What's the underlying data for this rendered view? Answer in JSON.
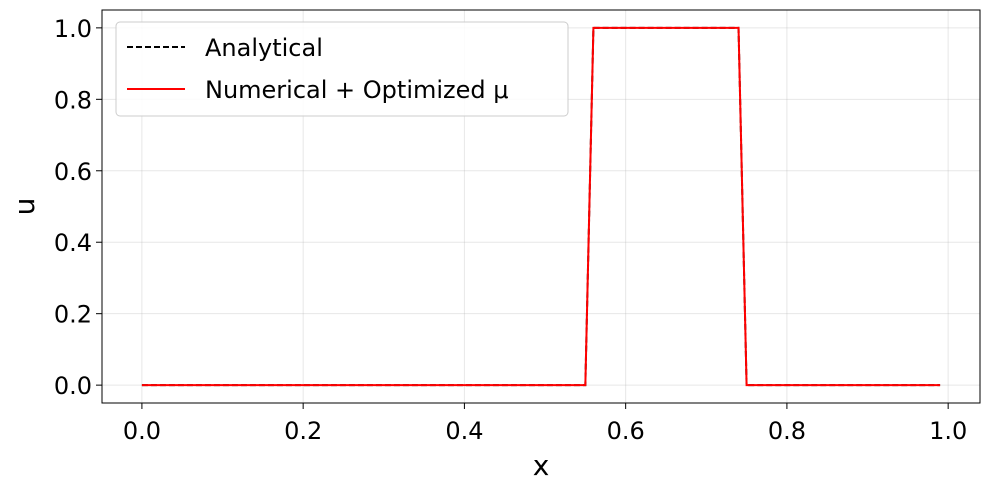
{
  "chart_data": {
    "type": "line",
    "xlabel": "x",
    "ylabel": "u",
    "xlim": [
      -0.0495,
      1.0395
    ],
    "ylim": [
      -0.05,
      1.05
    ],
    "x_ticks": [
      "0.0",
      "0.2",
      "0.4",
      "0.6",
      "0.8",
      "1.0"
    ],
    "y_ticks": [
      "0.0",
      "0.2",
      "0.4",
      "0.6",
      "0.8",
      "1.0"
    ],
    "grid": true,
    "legend_position": "top-left",
    "series": [
      {
        "name": "Analytical",
        "style": "dashed",
        "color": "#000000",
        "x": [
          0.0,
          0.55,
          0.56,
          0.74,
          0.75,
          0.99
        ],
        "y": [
          0.0,
          0.0,
          1.0,
          1.0,
          0.0,
          0.0
        ]
      },
      {
        "name": "Numerical + Optimized μ",
        "style": "solid",
        "color": "#ff0000",
        "x": [
          0.0,
          0.55,
          0.56,
          0.74,
          0.75,
          0.99
        ],
        "y": [
          0.0,
          0.0,
          1.0,
          1.0,
          0.0,
          0.0
        ]
      }
    ]
  }
}
